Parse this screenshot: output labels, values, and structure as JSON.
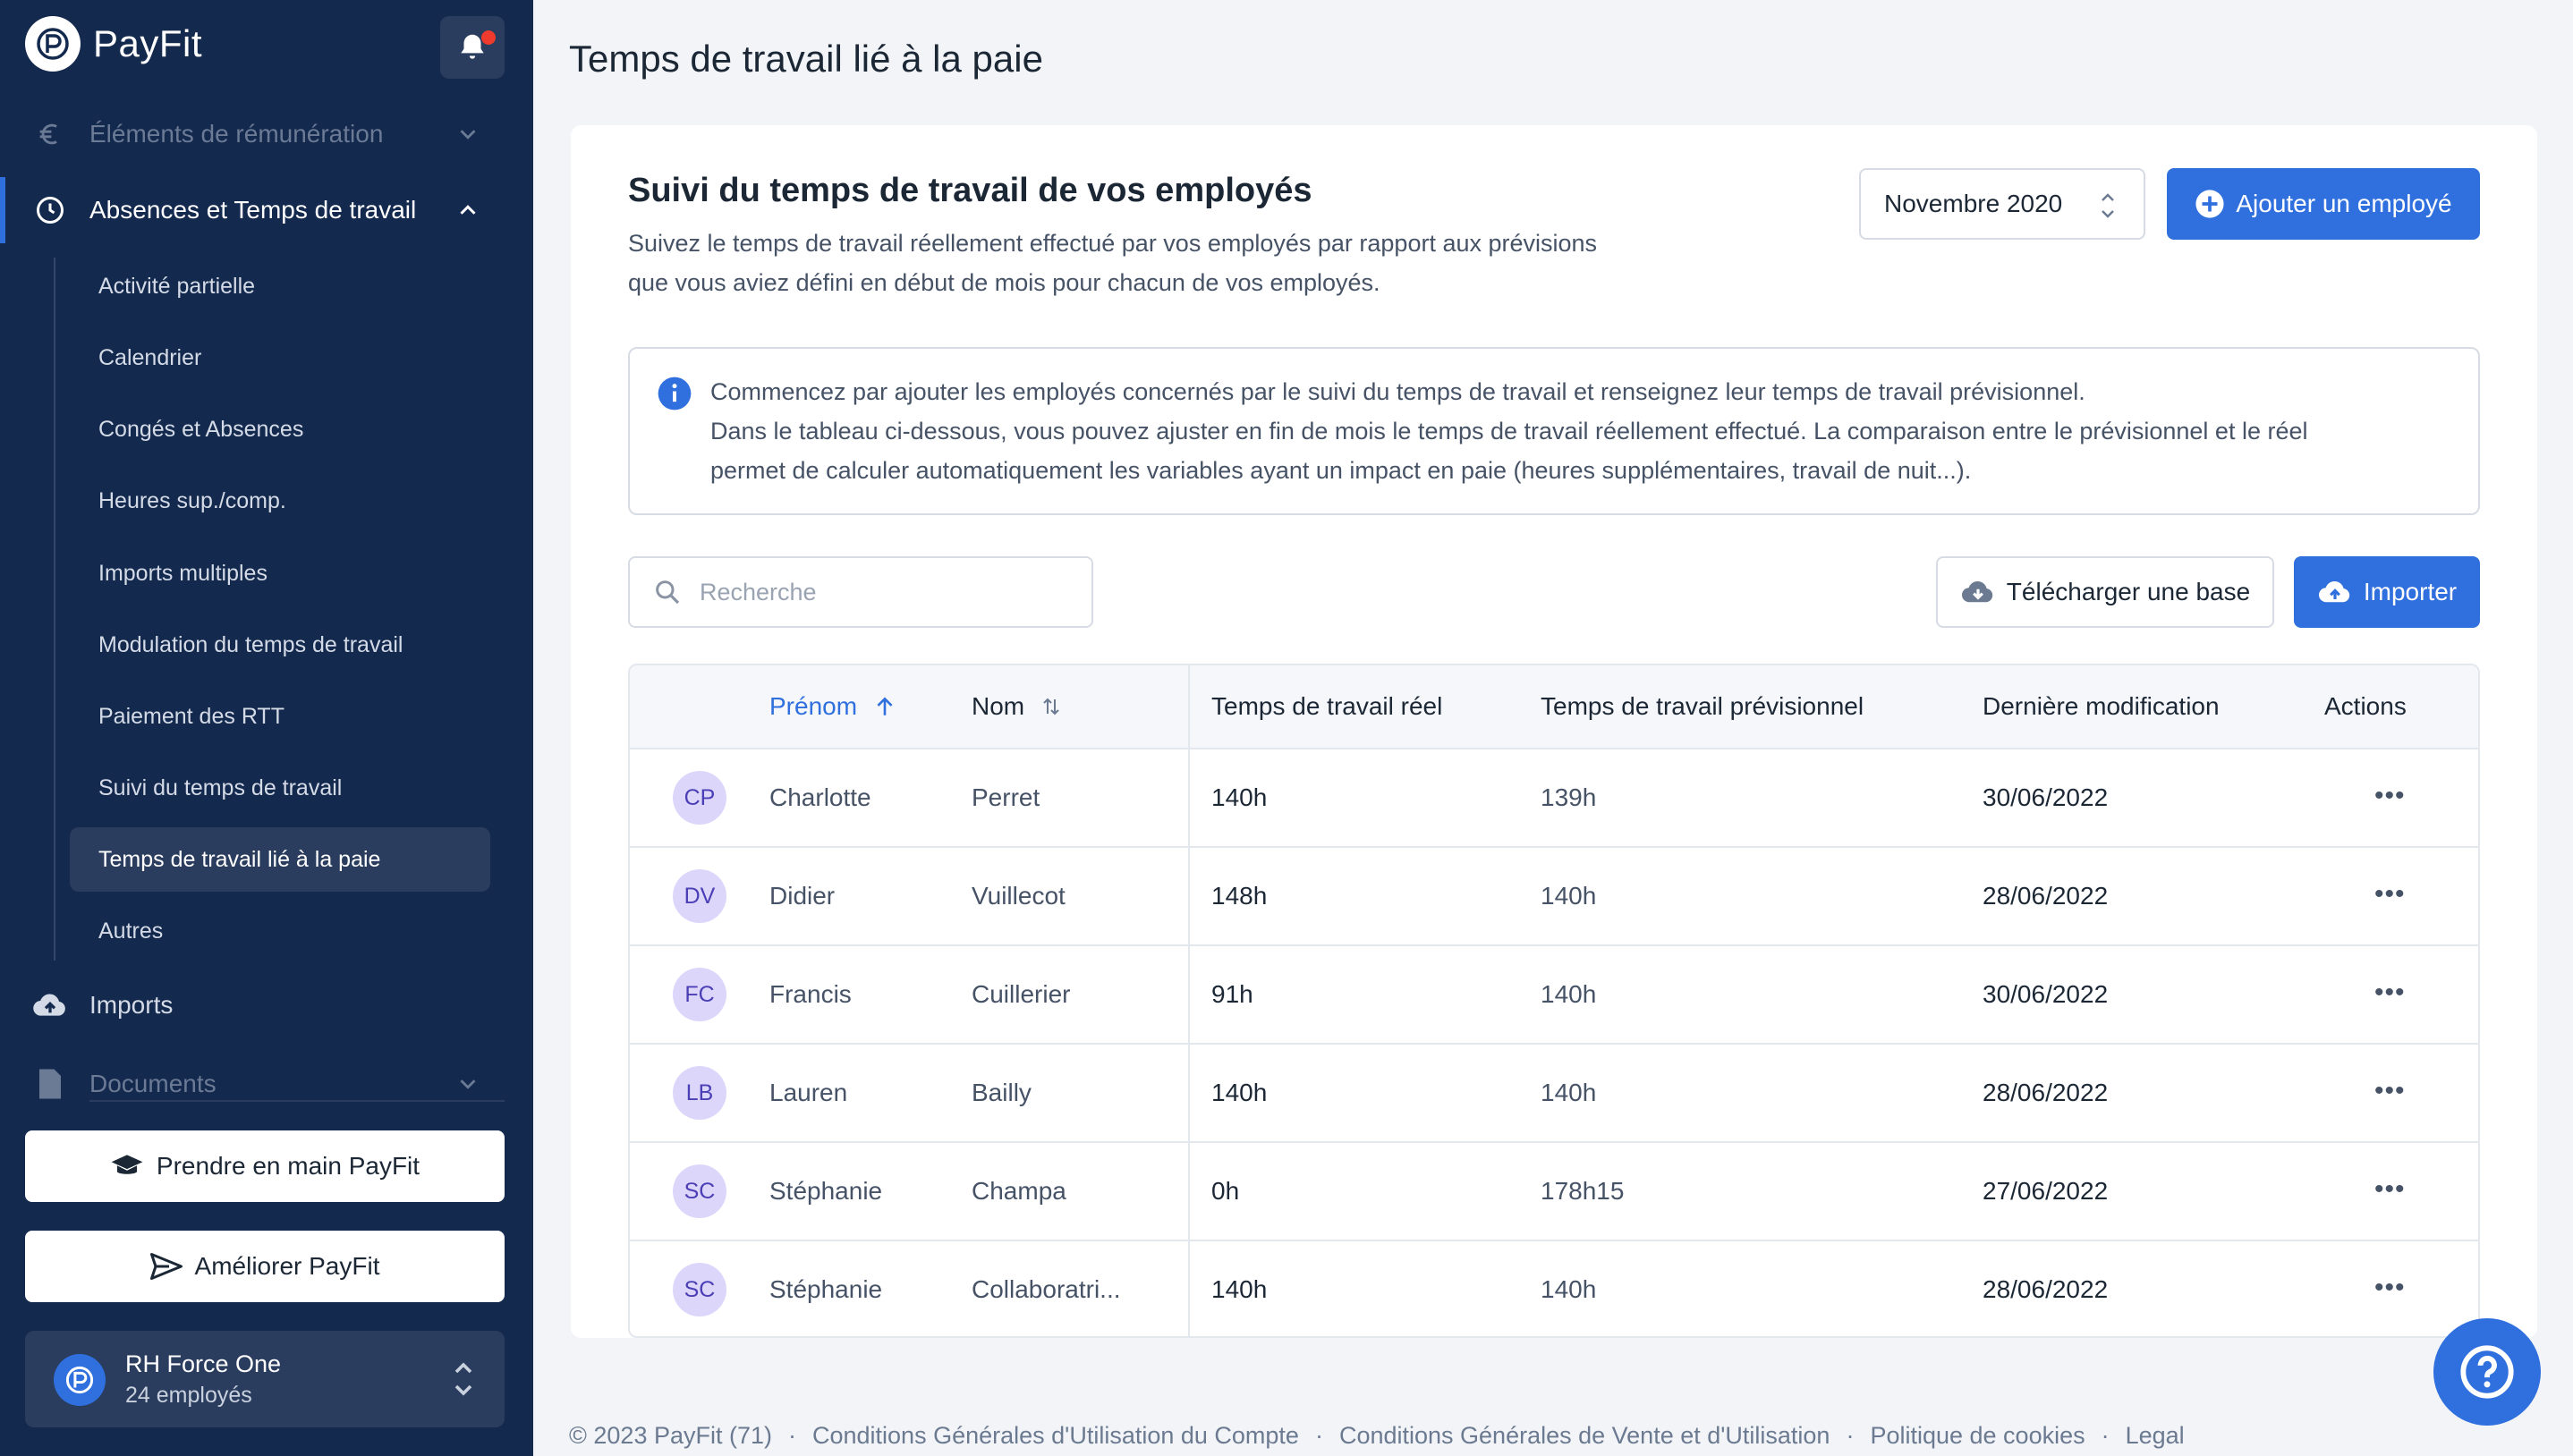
{
  "app": {
    "brand": "PayFit"
  },
  "colors": {
    "sidebar": "#14294e",
    "accent": "#2f6fde",
    "avatar_bg": "#dcd6fb"
  },
  "sidebar": {
    "sections": {
      "remuneration": "Éléments de rémunération",
      "absences": "Absences et Temps de travail",
      "imports": "Imports",
      "documents": "Documents"
    },
    "sub_items": [
      {
        "label": "Activité partielle"
      },
      {
        "label": "Calendrier"
      },
      {
        "label": "Congés et Absences"
      },
      {
        "label": "Heures sup./comp."
      },
      {
        "label": "Imports multiples"
      },
      {
        "label": "Modulation du temps de travail"
      },
      {
        "label": "Paiement des RTT"
      },
      {
        "label": "Suivi du temps de travail"
      },
      {
        "label": "Temps de travail lié à la paie",
        "active": true
      },
      {
        "label": "Autres"
      }
    ],
    "buttons": {
      "onboarding": "Prendre en main PayFit",
      "improve": "Améliorer PayFit"
    },
    "company": {
      "name": "RH Force One",
      "employees": "24 employés"
    }
  },
  "main": {
    "page_title": "Temps de travail lié à la paie",
    "card_title": "Suivi du temps de travail de vos employés",
    "card_desc_line1": "Suivez le temps de travail réellement effectué par vos employés par rapport aux prévisions",
    "card_desc_line2": "que vous aviez défini en début de mois pour chacun de vos employés.",
    "month": "Novembre 2020",
    "add_employee": "Ajouter un employé",
    "info_line1": "Commencez par ajouter les employés concernés par le suivi du temps de travail et renseignez leur temps de travail prévisionnel.",
    "info_line2": "Dans le tableau ci-dessous, vous pouvez ajuster en fin de mois le temps de travail réellement effectué. La comparaison entre le prévisionnel et le réel",
    "info_line3": "permet de calculer automatiquement les variables ayant un impact en paie (heures supplémentaires, travail de nuit...).",
    "search_placeholder": "Recherche",
    "download_base": "Télécharger une base",
    "import": "Importer",
    "table": {
      "headers": {
        "first_name": "Prénom",
        "last_name": "Nom",
        "real": "Temps de travail réel",
        "planned": "Temps de travail prévisionnel",
        "modified": "Dernière modification",
        "actions": "Actions"
      },
      "rows": [
        {
          "initials": "CP",
          "first_name": "Charlotte",
          "last_name": "Perret",
          "real": "140h",
          "planned": "139h",
          "modified": "30/06/2022"
        },
        {
          "initials": "DV",
          "first_name": "Didier",
          "last_name": "Vuillecot",
          "real": "148h",
          "planned": "140h",
          "modified": "28/06/2022"
        },
        {
          "initials": "FC",
          "first_name": "Francis",
          "last_name": "Cuillerier",
          "real": "91h",
          "planned": "140h",
          "modified": "30/06/2022"
        },
        {
          "initials": "LB",
          "first_name": "Lauren",
          "last_name": "Bailly",
          "real": "140h",
          "planned": "140h",
          "modified": "28/06/2022"
        },
        {
          "initials": "SC",
          "first_name": "Stéphanie",
          "last_name": "Champa",
          "real": "0h",
          "planned": "178h15",
          "modified": "27/06/2022"
        },
        {
          "initials": "SC",
          "first_name": "Stéphanie",
          "last_name": "Collaboratri...",
          "real": "140h",
          "planned": "140h",
          "modified": "28/06/2022"
        }
      ]
    }
  },
  "footer": {
    "copyright": "© 2023 PayFit (71)",
    "links": [
      "Conditions Générales d'Utilisation du Compte",
      "Conditions Générales de Vente et d'Utilisation",
      "Politique de cookies",
      "Legal"
    ]
  }
}
